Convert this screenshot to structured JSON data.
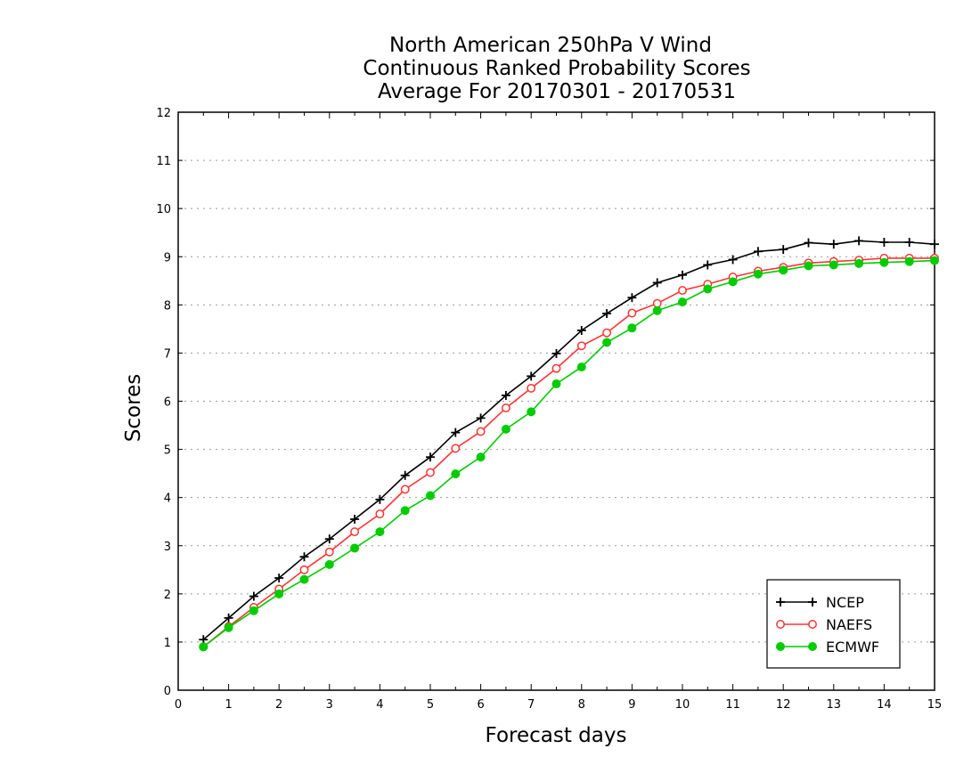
{
  "chart_data": {
    "type": "line",
    "title": [
      "North American 250hPa V Wind",
      "Continuous Ranked Probability Scores",
      "Average For 20170301 - 20170531"
    ],
    "xlabel": "Forecast days",
    "ylabel": "Scores",
    "xlim": [
      0,
      15
    ],
    "ylim": [
      0,
      12
    ],
    "xticks": [
      "0",
      "1",
      "2",
      "3",
      "4",
      "5",
      "6",
      "7",
      "8",
      "9",
      "10",
      "11",
      "12",
      "13",
      "14",
      "15"
    ],
    "yticks": [
      "0",
      "1",
      "2",
      "3",
      "4",
      "5",
      "6",
      "7",
      "8",
      "9",
      "10",
      "11",
      "12"
    ],
    "grid": "horizontal-dotted",
    "legend_position": "bottom-right",
    "x": [
      0.5,
      1,
      1.5,
      2,
      2.5,
      3,
      3.5,
      4,
      4.5,
      5,
      5.5,
      6,
      6.5,
      7,
      7.5,
      8,
      8.5,
      9,
      9.5,
      10,
      10.5,
      11,
      11.5,
      12,
      12.5,
      13,
      13.5,
      14,
      14.5,
      15
    ],
    "series": [
      {
        "name": "NCEP",
        "color": "#000000",
        "marker": "plus",
        "values": [
          1.05,
          1.5,
          1.95,
          2.33,
          2.77,
          3.14,
          3.55,
          3.96,
          4.46,
          4.84,
          5.35,
          5.65,
          6.12,
          6.52,
          6.99,
          7.47,
          7.82,
          8.15,
          8.46,
          8.62,
          8.83,
          8.94,
          9.11,
          9.15,
          9.29,
          9.26,
          9.33,
          9.3,
          9.3,
          9.26
        ]
      },
      {
        "name": "NAEFS",
        "color": "#ff3333",
        "marker": "open-circle",
        "values": [
          0.9,
          1.32,
          1.72,
          2.1,
          2.5,
          2.87,
          3.29,
          3.66,
          4.17,
          4.52,
          5.02,
          5.37,
          5.86,
          6.27,
          6.68,
          7.15,
          7.42,
          7.83,
          8.03,
          8.3,
          8.43,
          8.58,
          8.7,
          8.78,
          8.87,
          8.9,
          8.93,
          8.97,
          8.97,
          8.97
        ]
      },
      {
        "name": "ECMWF",
        "color": "#00cc00",
        "marker": "filled-circle",
        "values": [
          0.9,
          1.3,
          1.65,
          2,
          2.3,
          2.61,
          2.95,
          3.29,
          3.73,
          4.04,
          4.49,
          4.84,
          5.42,
          5.78,
          6.36,
          6.71,
          7.22,
          7.52,
          7.88,
          8.06,
          8.33,
          8.48,
          8.64,
          8.72,
          8.81,
          8.83,
          8.86,
          8.88,
          8.9,
          8.92
        ]
      }
    ]
  }
}
